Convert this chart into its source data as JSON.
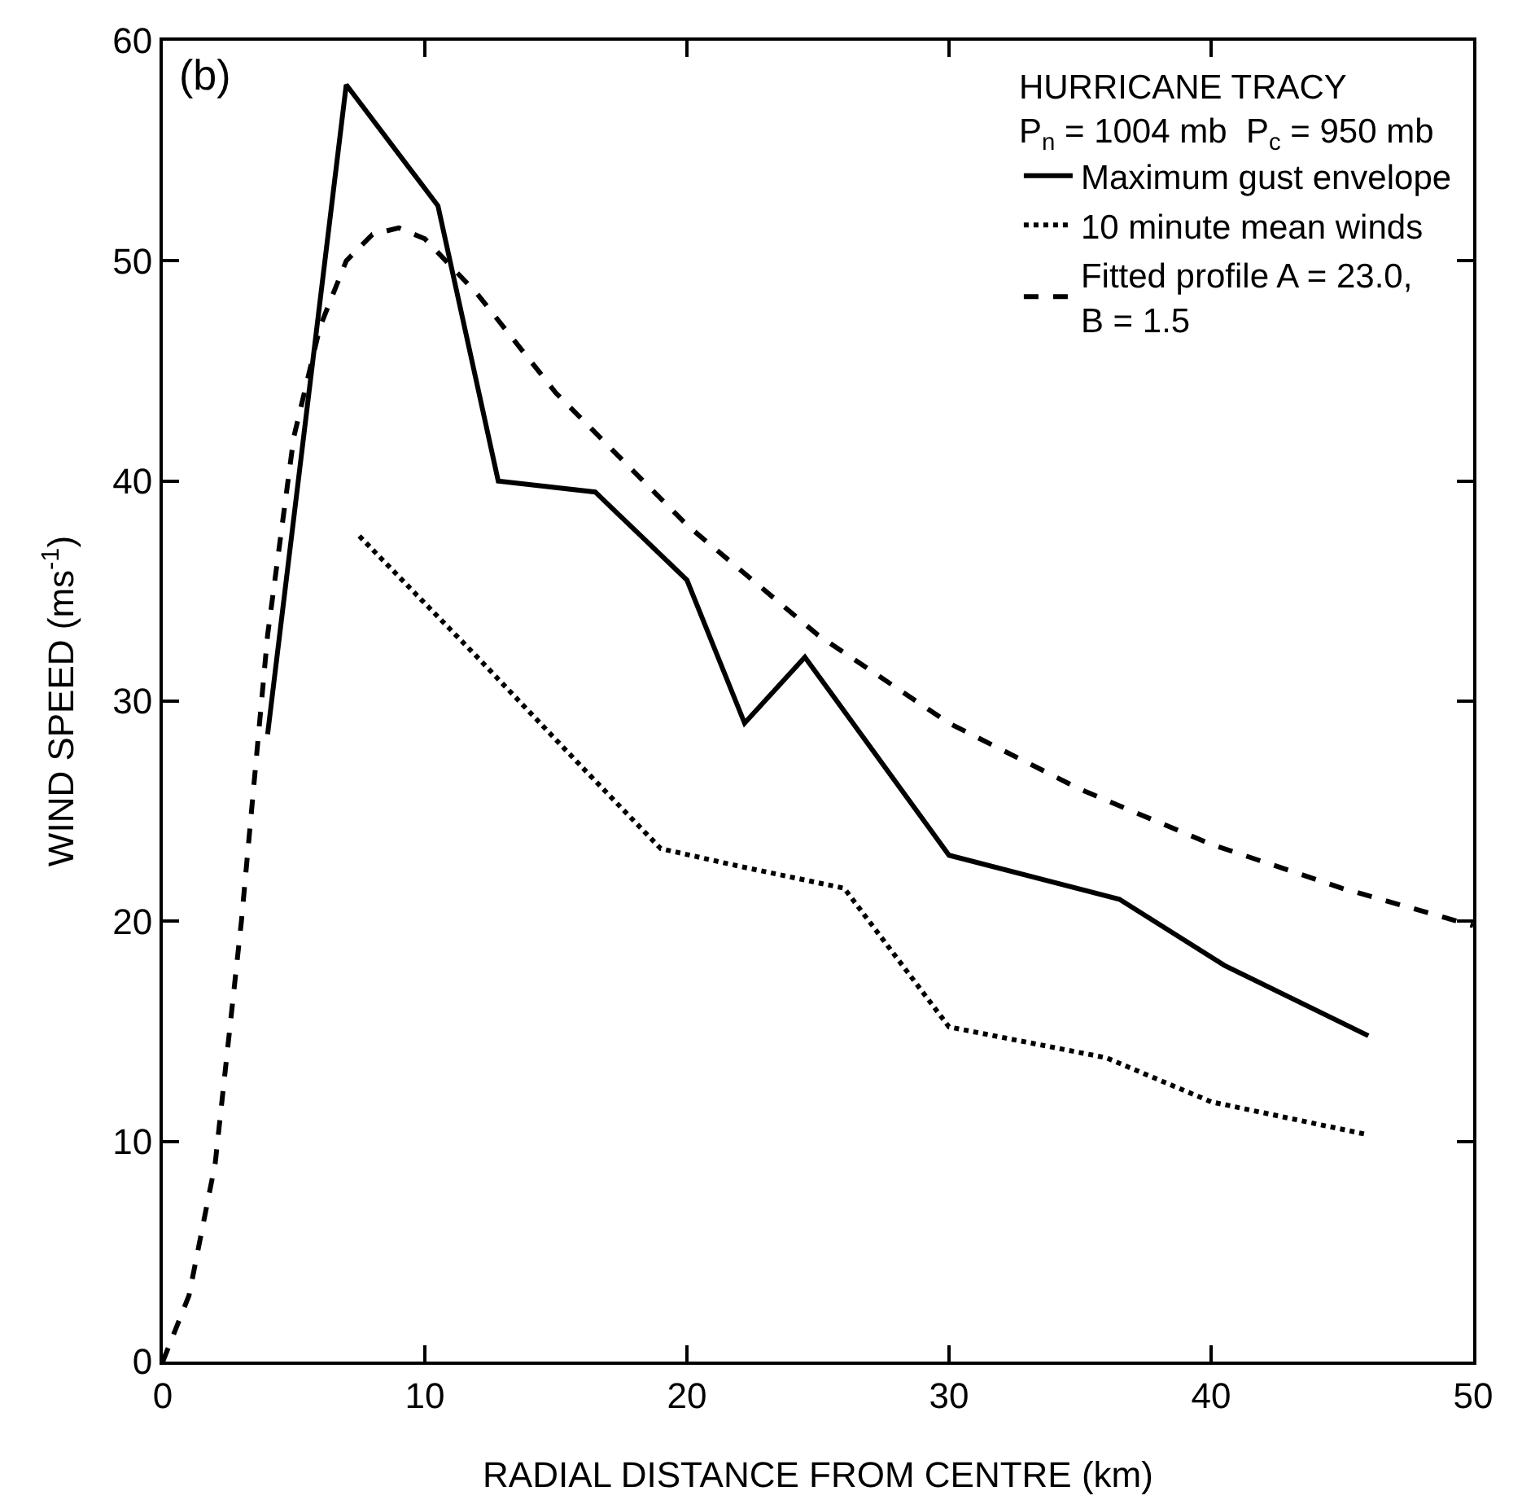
{
  "chart_data": {
    "type": "line",
    "xlabel": "RADIAL DISTANCE FROM CENTRE (km)",
    "ylabel": "WIND SPEED (ms$^{-1}$)",
    "legend_title": "HURRICANE TRACY\nP$_{n}$ = 1004 mb  P$_{c}$ = 950 mb",
    "annotations": [
      "(b)"
    ],
    "xlim": [
      0,
      50
    ],
    "xticks": [
      0,
      10,
      20,
      30,
      40,
      50
    ],
    "ylim": [
      0,
      60
    ],
    "yticks": [
      0,
      10,
      20,
      30,
      40,
      50,
      60
    ],
    "grid": false,
    "legend": "top right",
    "marker": "none",
    "series": [
      {
        "name": "Maximum gust envelope",
        "color": "#000000",
        "line_style": "solid",
        "x": [
          4,
          7,
          10.5,
          12.8,
          16.5,
          20,
          22.2,
          24.5,
          30,
          36.5,
          40.5,
          46
        ],
        "values": [
          28.5,
          58,
          52.5,
          40,
          39.5,
          35.5,
          29,
          32,
          23,
          21,
          18,
          14.8
        ]
      },
      {
        "name": "10 minute mean winds",
        "color": "#000000",
        "line_style": "dotted",
        "x": [
          7.5,
          12,
          16,
          19,
          22,
          26,
          30,
          36,
          40,
          46
        ],
        "values": [
          37.5,
          32,
          27,
          23.3,
          22.5,
          21.5,
          15.2,
          13.8,
          11.8,
          10.3
        ]
      },
      {
        "name": "Fitted profile A = 23.0,\nB = 1.5",
        "color": "#000000",
        "line_style": "dashed",
        "x": [
          0,
          1,
          2,
          3,
          4,
          5,
          6,
          7,
          8,
          9,
          10,
          12,
          15,
          20,
          25,
          30,
          35,
          40,
          45,
          50
        ],
        "values": [
          0,
          3,
          9,
          20,
          33,
          42,
          47,
          50,
          51.2,
          51.5,
          51,
          48.5,
          44,
          38,
          33,
          29,
          26,
          23.5,
          21.5,
          19.8
        ]
      }
    ]
  }
}
